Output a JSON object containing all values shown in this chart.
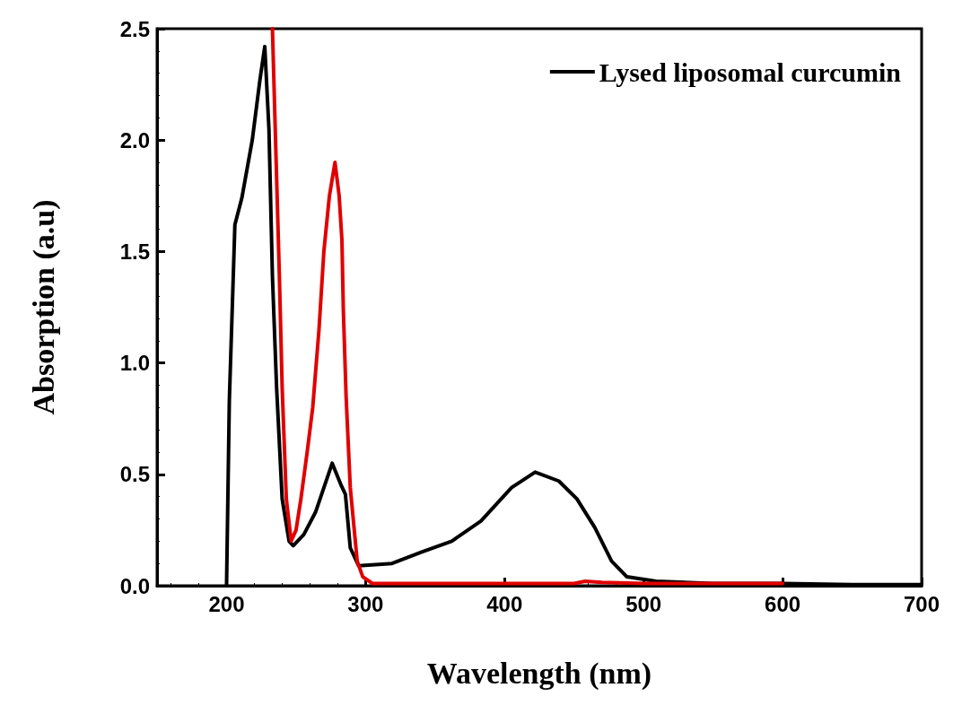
{
  "chart_data": {
    "type": "line",
    "xlabel": "Wavelength (nm)",
    "ylabel": "Absorption (a.u)",
    "xlim": [
      150,
      700
    ],
    "xticks": [
      200,
      300,
      400,
      500,
      600,
      700
    ],
    "ylim": [
      0,
      2.5
    ],
    "yticks": [
      {
        "value": 0,
        "label": "0.0"
      },
      0.5,
      {
        "value": 1,
        "label": "1.0"
      },
      1.5,
      {
        "value": 2,
        "label": "2.0"
      },
      2.5
    ],
    "grid": false,
    "legend": "top right",
    "marker": "none",
    "line_style": "solid",
    "series": [
      {
        "name": "Lysed liposomal curcumin",
        "color": "#000000",
        "x": [
          200,
          202,
          206,
          211,
          218.5,
          224,
          227.5,
          230.5,
          233,
          236,
          240,
          245,
          248,
          255.6,
          264,
          276,
          282.5,
          285.5,
          289,
          295,
          319,
          340,
          362,
          383,
          405,
          422,
          439,
          452,
          465,
          477,
          488,
          509,
          550,
          600,
          650,
          700
        ],
        "values": [
          0,
          0.83,
          1.62,
          1.74,
          2.0,
          2.27,
          2.42,
          2.05,
          1.39,
          0.89,
          0.39,
          0.2,
          0.18,
          0.23,
          0.33,
          0.55,
          0.45,
          0.41,
          0.17,
          0.09,
          0.1,
          0.15,
          0.2,
          0.29,
          0.44,
          0.51,
          0.47,
          0.39,
          0.26,
          0.11,
          0.04,
          0.02,
          0.01,
          0.01,
          0.005,
          0.005
        ]
      },
      {
        "color": "#e00000",
        "x": [
          233,
          238,
          240,
          243,
          246.5,
          250,
          253.5,
          258,
          262,
          266.5,
          270,
          274,
          278,
          281,
          283,
          284,
          286,
          289,
          294,
          298,
          305,
          350,
          400,
          450,
          458,
          470,
          500,
          550,
          600
        ],
        "values": [
          2.5,
          1.39,
          0.89,
          0.39,
          0.2,
          0.25,
          0.39,
          0.6,
          0.8,
          1.15,
          1.5,
          1.75,
          1.9,
          1.75,
          1.55,
          1.24,
          0.85,
          0.44,
          0.11,
          0.04,
          0.01,
          0.01,
          0.01,
          0.01,
          0.02,
          0.015,
          0.01,
          0.01,
          0.01
        ]
      }
    ]
  }
}
